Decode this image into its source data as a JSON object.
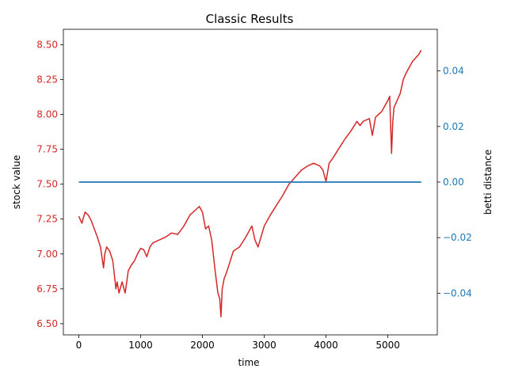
{
  "chart_data": {
    "type": "line",
    "title": "Classic Results",
    "xlabel": "time",
    "ylabel_left": "stock value",
    "ylabel_right": "betti distance",
    "xlim": [
      -250,
      5800
    ],
    "ylim_left": [
      6.42,
      8.61
    ],
    "ylim_right": [
      -0.055,
      0.055
    ],
    "xticks": [
      0,
      1000,
      2000,
      3000,
      4000,
      5000
    ],
    "xtick_labels": [
      "0",
      "1000",
      "2000",
      "3000",
      "4000",
      "5000"
    ],
    "yticks_left": [
      6.5,
      6.75,
      7.0,
      7.25,
      7.5,
      7.75,
      8.0,
      8.25,
      8.5
    ],
    "ytick_labels_left": [
      "6.50",
      "6.75",
      "7.00",
      "7.25",
      "7.50",
      "7.75",
      "8.00",
      "8.25",
      "8.50"
    ],
    "yticks_right": [
      -0.04,
      -0.02,
      0.0,
      0.02,
      0.04
    ],
    "ytick_labels_right": [
      "−0.04",
      "−0.02",
      "0.00",
      "0.02",
      "0.04"
    ],
    "grid": false,
    "colors": {
      "left": "#d62728",
      "right": "#1f77b4"
    },
    "series": [
      {
        "axis": "left",
        "color": "#d62728",
        "x": [
          0,
          50,
          100,
          150,
          200,
          250,
          300,
          350,
          400,
          420,
          450,
          500,
          550,
          600,
          620,
          650,
          700,
          750,
          800,
          850,
          900,
          950,
          1000,
          1050,
          1100,
          1150,
          1200,
          1300,
          1400,
          1500,
          1600,
          1700,
          1800,
          1900,
          1950,
          2000,
          2050,
          2100,
          2150,
          2200,
          2250,
          2280,
          2300,
          2320,
          2350,
          2400,
          2450,
          2500,
          2600,
          2700,
          2800,
          2850,
          2900,
          3000,
          3100,
          3200,
          3300,
          3400,
          3500,
          3600,
          3700,
          3800,
          3900,
          3950,
          4000,
          4050,
          4100,
          4200,
          4300,
          4400,
          4500,
          4550,
          4600,
          4700,
          4750,
          4800,
          4900,
          5000,
          5030,
          5060,
          5080,
          5100,
          5150,
          5200,
          5250,
          5300,
          5400,
          5500,
          5540
        ],
        "values": [
          7.27,
          7.22,
          7.3,
          7.28,
          7.24,
          7.18,
          7.12,
          7.05,
          6.9,
          7.0,
          7.05,
          7.02,
          6.95,
          6.75,
          6.8,
          6.72,
          6.8,
          6.72,
          6.88,
          6.92,
          6.95,
          7.0,
          7.04,
          7.03,
          6.98,
          7.05,
          7.08,
          7.1,
          7.12,
          7.15,
          7.14,
          7.2,
          7.28,
          7.32,
          7.34,
          7.3,
          7.18,
          7.2,
          7.1,
          6.9,
          6.72,
          6.68,
          6.55,
          6.75,
          6.82,
          6.88,
          6.95,
          7.02,
          7.05,
          7.12,
          7.2,
          7.1,
          7.05,
          7.2,
          7.28,
          7.35,
          7.42,
          7.5,
          7.55,
          7.6,
          7.63,
          7.65,
          7.63,
          7.6,
          7.52,
          7.65,
          7.68,
          7.75,
          7.82,
          7.88,
          7.95,
          7.92,
          7.95,
          7.97,
          7.85,
          7.98,
          8.02,
          8.1,
          8.13,
          7.72,
          7.95,
          8.05,
          8.1,
          8.15,
          8.25,
          8.3,
          8.38,
          8.43,
          8.46
        ]
      },
      {
        "axis": "right",
        "color": "#1f77b4",
        "x": [
          0,
          5540
        ],
        "values": [
          0.0,
          0.0
        ]
      }
    ]
  }
}
